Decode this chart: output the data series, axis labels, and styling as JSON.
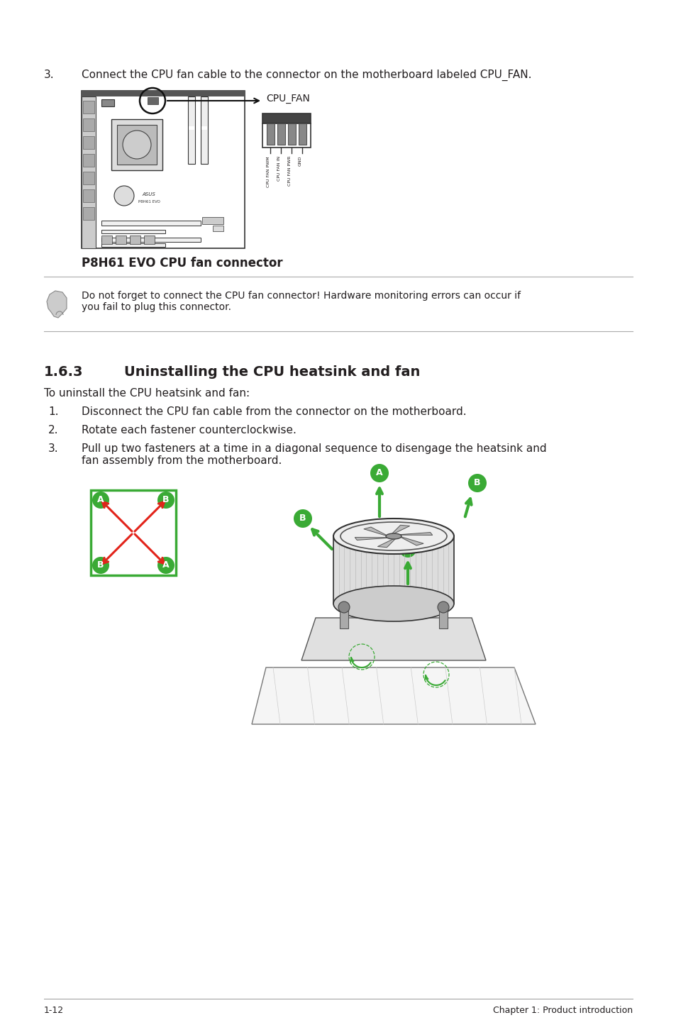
{
  "bg_color": "#ffffff",
  "text_color": "#231f20",
  "green_color": "#3aaa35",
  "red_color": "#e2231a",
  "step3_text": "Connect the CPU fan cable to the connector on the motherboard labeled CPU_FAN.",
  "caption_bold": "P8H61 EVO CPU fan connector",
  "note_text": "Do not forget to connect the CPU fan connector! Hardware monitoring errors can occur if\nyou fail to plug this connector.",
  "section_title": "1.6.3",
  "section_title2": "Uninstalling the CPU heatsink and fan",
  "intro_text": "To uninstall the CPU heatsink and fan:",
  "step1_text": "Disconnect the CPU fan cable from the connector on the motherboard.",
  "step2_text": "Rotate each fastener counterclockwise.",
  "step3b_text": "Pull up two fasteners at a time in a diagonal sequence to disengage the heatsink and\nfan assembly from the motherboard.",
  "footer_left": "1-12",
  "footer_right": "Chapter 1: Product introduction",
  "cpu_fan_label": "CPU_FAN",
  "connector_labels": [
    "CPU FAN PWM",
    "CPU FAN IN",
    "CPU FAN PWR",
    "GND"
  ]
}
